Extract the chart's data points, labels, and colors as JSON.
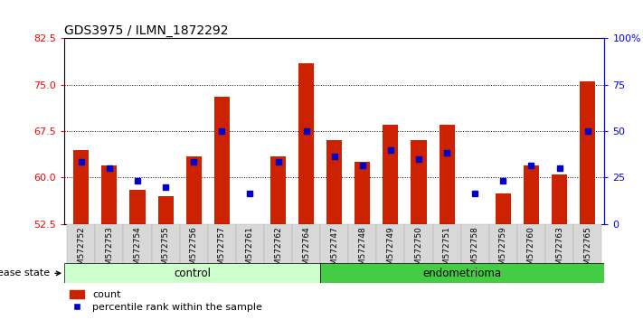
{
  "title": "GDS3975 / ILMN_1872292",
  "samples": [
    "GSM572752",
    "GSM572753",
    "GSM572754",
    "GSM572755",
    "GSM572756",
    "GSM572757",
    "GSM572761",
    "GSM572762",
    "GSM572764",
    "GSM572747",
    "GSM572748",
    "GSM572749",
    "GSM572750",
    "GSM572751",
    "GSM572758",
    "GSM572759",
    "GSM572760",
    "GSM572763",
    "GSM572765"
  ],
  "red_values": [
    64.5,
    62.0,
    58.0,
    57.0,
    63.5,
    73.0,
    52.5,
    63.5,
    78.5,
    66.0,
    62.5,
    68.5,
    66.0,
    68.5,
    52.5,
    57.5,
    62.0,
    60.5,
    75.5
  ],
  "blue_values": [
    62.5,
    61.5,
    59.5,
    58.5,
    62.5,
    67.5,
    57.5,
    62.5,
    67.5,
    63.5,
    62.0,
    64.5,
    63.0,
    64.0,
    57.5,
    59.5,
    62.0,
    61.5,
    67.5
  ],
  "y_min": 52.5,
  "y_max": 82.5,
  "y_ticks_left": [
    52.5,
    60.0,
    67.5,
    75.0,
    82.5
  ],
  "y_ticks_right": [
    0,
    25,
    50,
    75,
    100
  ],
  "control_count": 9,
  "endometrioma_count": 10,
  "bar_color": "#cc2200",
  "blue_color": "#0000cc",
  "control_bg": "#ccffcc",
  "endo_bg": "#44cc44",
  "grid_lines": [
    60.0,
    67.5,
    75.0
  ]
}
